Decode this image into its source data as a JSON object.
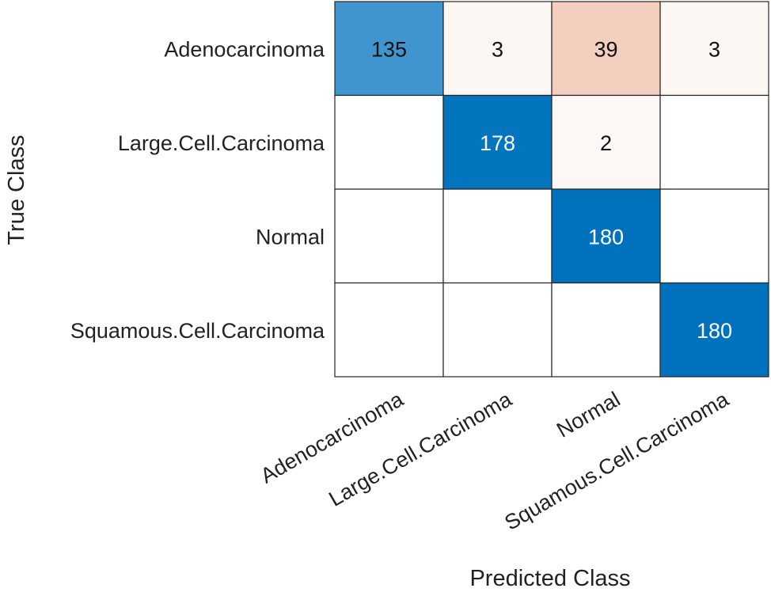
{
  "chart_data": {
    "type": "heatmap",
    "title": "",
    "xlabel": "Predicted Class",
    "ylabel": "True Class",
    "row_labels": [
      "Adenocarcinoma",
      "Large.Cell.Carcinoma",
      "Normal",
      "Squamous.Cell.Carcinoma"
    ],
    "col_labels": [
      "Adenocarcinoma",
      "Large.Cell.Carcinoma",
      "Normal",
      "Squamous.Cell.Carcinoma"
    ],
    "values": [
      [
        135,
        3,
        39,
        3
      ],
      [
        0,
        178,
        2,
        0
      ],
      [
        0,
        0,
        180,
        0
      ],
      [
        0,
        0,
        0,
        180
      ]
    ],
    "zero_cells_shown": false
  },
  "colors": {
    "diagonal_base": "#ffffff",
    "diagonal_full": "#0072bd",
    "offdiag_base": "#ffffff",
    "offdiag_full": "#d95319",
    "grid_line": "#262626",
    "text_dark": "#111111",
    "text_light": "#ffffff"
  }
}
